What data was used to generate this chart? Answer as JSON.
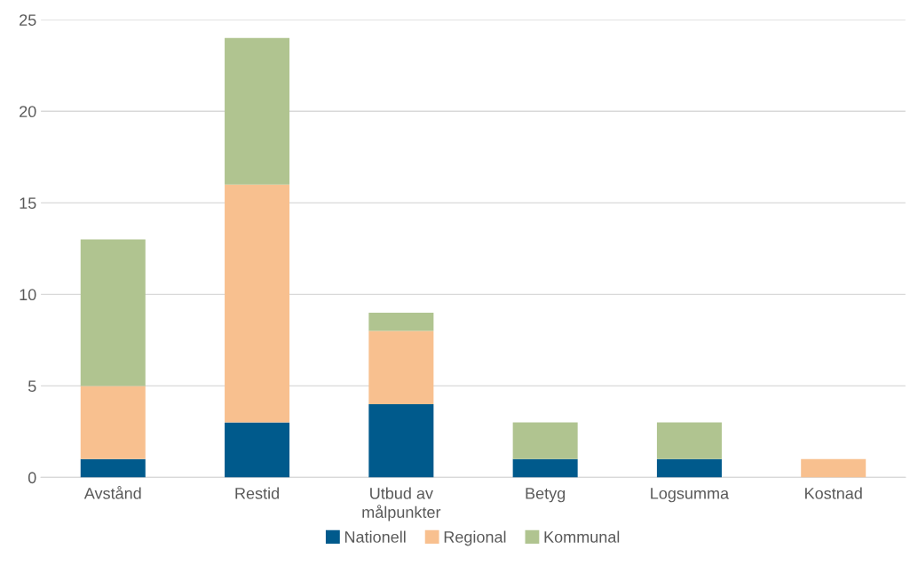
{
  "chart_data": {
    "type": "bar",
    "stacked": true,
    "categories": [
      "Avstånd",
      "Restid",
      "Utbud av\nmålpunkter",
      "Betyg",
      "Logsumma",
      "Kostnad"
    ],
    "series": [
      {
        "name": "Nationell",
        "color": "#005a8c",
        "values": [
          1,
          3,
          4,
          1,
          1,
          null
        ]
      },
      {
        "name": "Regional",
        "color": "#f8c08f",
        "values": [
          4,
          13,
          4,
          null,
          null,
          1
        ]
      },
      {
        "name": "Kommunal",
        "color": "#b0c490",
        "values": [
          8,
          8,
          1,
          2,
          2,
          null
        ]
      }
    ],
    "ylim": [
      0,
      25
    ],
    "yticks": [
      0,
      5,
      10,
      15,
      20,
      25
    ],
    "grid": "y",
    "legend": "bottom"
  }
}
